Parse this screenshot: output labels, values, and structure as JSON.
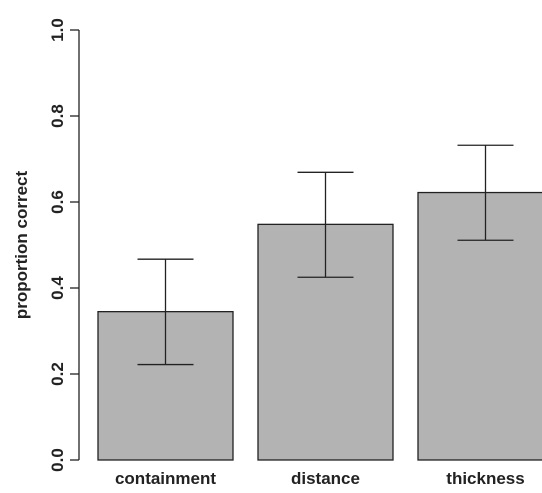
{
  "chart_data": {
    "type": "bar",
    "categories": [
      "containment",
      "distance",
      "thickness"
    ],
    "values": [
      0.345,
      0.548,
      0.622
    ],
    "error_low": [
      0.222,
      0.425,
      0.511
    ],
    "error_high": [
      0.467,
      0.669,
      0.732
    ],
    "ylabel": "proportion correct",
    "ylim": [
      0,
      1
    ],
    "yticks": [
      "0.0",
      "0.2",
      "0.4",
      "0.6",
      "0.8",
      "1.0"
    ],
    "bar_color": "#b3b3b3",
    "grid": false,
    "legend": "none"
  }
}
